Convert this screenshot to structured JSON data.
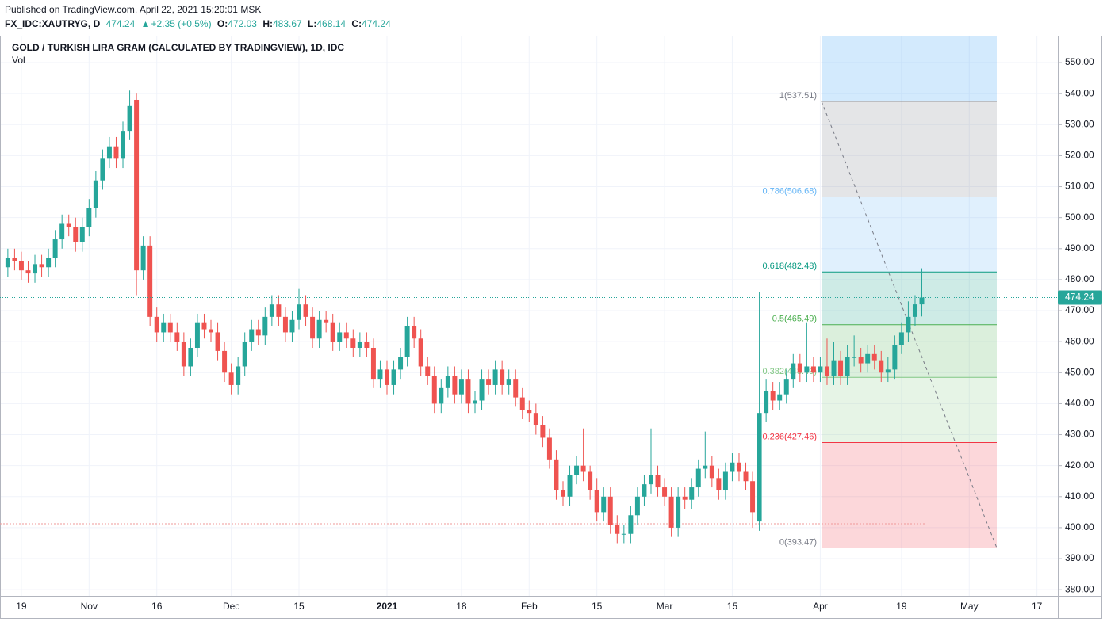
{
  "header": {
    "published": "Published on TradingView.com, April 22, 2021 15:20:01 MSK",
    "symbol": "FX_IDC:XAUTRYG, D",
    "last": "474.24",
    "arrow": "▲",
    "change": "+2.35 (+0.5%)",
    "o_label": "O:",
    "o": "472.03",
    "h_label": "H:",
    "h": "483.67",
    "l_label": "L:",
    "l": "468.14",
    "c_label": "C:",
    "c": "474.24"
  },
  "chart_data": {
    "type": "candlestick",
    "title": "GOLD / TURKISH LIRA GRAM (CALCULATED BY TRADINGVIEW), 1D, IDC",
    "subtitle": "Vol",
    "up_color": "#26a69a",
    "down_color": "#ef5350",
    "grid": true,
    "categories": [
      null,
      null,
      "19",
      null,
      null,
      null,
      null,
      null,
      null,
      null,
      null,
      null,
      "Nov",
      null,
      null,
      null,
      null,
      null,
      null,
      null,
      null,
      null,
      "16",
      null,
      null,
      null,
      null,
      null,
      null,
      null,
      null,
      null,
      null,
      "Dec",
      null,
      null,
      null,
      null,
      null,
      null,
      null,
      null,
      null,
      "15",
      null,
      null,
      null,
      null,
      null,
      null,
      null,
      null,
      null,
      null,
      null,
      null,
      "2021",
      null,
      null,
      null,
      null,
      null,
      null,
      null,
      null,
      null,
      null,
      "18",
      null,
      null,
      null,
      null,
      null,
      null,
      null,
      null,
      null,
      "Feb",
      null,
      null,
      null,
      null,
      null,
      null,
      null,
      null,
      null,
      "15",
      null,
      null,
      null,
      null,
      null,
      null,
      null,
      null,
      null,
      "Mar",
      null,
      null,
      null,
      null,
      null,
      null,
      null,
      null,
      null,
      "15",
      null,
      null,
      null,
      null,
      null,
      null,
      null,
      null,
      null,
      null,
      null,
      null,
      "Apr",
      null,
      null,
      null,
      null,
      null,
      null,
      null,
      null,
      null,
      null,
      null,
      "19",
      null,
      null,
      null,
      null,
      null,
      null,
      null,
      null,
      null,
      "May",
      null,
      null,
      null,
      null,
      null,
      null,
      null,
      null,
      null,
      "17",
      null,
      null
    ],
    "open": [
      484,
      487,
      486,
      483,
      482,
      485,
      484,
      487,
      493,
      498,
      497,
      492,
      497,
      503,
      512,
      519,
      523,
      519,
      528,
      538,
      483,
      491,
      468,
      463,
      466,
      463,
      460,
      452,
      458,
      466,
      464,
      463,
      457,
      450,
      446,
      452,
      460,
      464,
      462,
      468,
      472,
      468,
      463,
      467,
      472,
      468,
      461,
      467,
      466,
      460,
      463,
      461,
      458,
      460,
      458,
      448,
      451,
      446,
      451,
      455,
      465,
      461,
      452,
      449,
      440,
      445,
      449,
      443,
      448,
      440,
      441,
      448,
      446,
      451,
      446,
      448,
      442,
      438,
      437,
      433,
      429,
      422,
      412,
      410,
      417,
      420,
      418,
      412,
      405,
      410,
      401,
      398,
      398,
      404,
      410,
      414,
      417,
      413,
      410,
      400,
      410,
      409,
      413,
      419,
      420,
      416,
      412,
      418,
      421,
      418,
      415,
      402,
      437,
      444,
      441,
      443,
      448,
      453,
      450,
      452,
      450,
      452,
      449,
      454,
      449,
      455,
      455,
      453,
      456,
      454,
      450,
      451,
      459,
      463,
      468,
      472.03,
      null,
      null,
      null,
      null,
      null,
      null,
      null,
      null,
      null,
      null,
      null,
      null,
      null,
      null,
      null,
      null,
      null,
      null,
      null
    ],
    "high": [
      490,
      490,
      489,
      486,
      488,
      488,
      490,
      496,
      501,
      501,
      500,
      500,
      506,
      515,
      522,
      526,
      526,
      531,
      541,
      540,
      494,
      494,
      471,
      469,
      469,
      466,
      463,
      461,
      469,
      469,
      467,
      466,
      460,
      453,
      455,
      463,
      467,
      467,
      471,
      475,
      475,
      471,
      470,
      477,
      475,
      471,
      470,
      470,
      469,
      466,
      466,
      464,
      463,
      463,
      461,
      454,
      454,
      454,
      458,
      468,
      468,
      464,
      455,
      452,
      448,
      452,
      452,
      451,
      451,
      444,
      451,
      451,
      454,
      454,
      451,
      451,
      445,
      441,
      440,
      436,
      432,
      425,
      415,
      420,
      423,
      432,
      420,
      416,
      413,
      413,
      404,
      401,
      407,
      413,
      417,
      432,
      420,
      416,
      413,
      413,
      413,
      416,
      422,
      431,
      423,
      419,
      421,
      424,
      424,
      421,
      418,
      476,
      448,
      447,
      447,
      451,
      456,
      456,
      466,
      455,
      455,
      461,
      460,
      457,
      459,
      462,
      458,
      459,
      459,
      457,
      455,
      462,
      466,
      473,
      475,
      483.67,
      null,
      null,
      null,
      null,
      null,
      null,
      null,
      null,
      null,
      null,
      null,
      null,
      null,
      null,
      null,
      null,
      null,
      null,
      null
    ],
    "low": [
      481,
      483,
      480,
      479,
      479,
      481,
      481,
      484,
      490,
      494,
      489,
      489,
      494,
      500,
      509,
      516,
      516,
      516,
      525,
      475,
      480,
      465,
      460,
      460,
      460,
      457,
      449,
      449,
      455,
      461,
      460,
      454,
      447,
      443,
      443,
      449,
      457,
      459,
      459,
      465,
      465,
      460,
      460,
      464,
      465,
      458,
      458,
      463,
      457,
      457,
      458,
      455,
      455,
      455,
      445,
      445,
      443,
      443,
      448,
      452,
      458,
      449,
      446,
      437,
      437,
      442,
      440,
      440,
      437,
      437,
      438,
      443,
      443,
      443,
      443,
      439,
      435,
      434,
      430,
      426,
      419,
      409,
      407,
      407,
      414,
      415,
      409,
      402,
      402,
      398,
      395,
      395,
      395,
      401,
      407,
      411,
      410,
      407,
      397,
      397,
      406,
      406,
      410,
      416,
      413,
      409,
      409,
      415,
      415,
      412,
      400,
      399,
      434,
      438,
      438,
      440,
      445,
      447,
      447,
      447,
      447,
      446,
      446,
      446,
      446,
      452,
      450,
      450,
      451,
      447,
      447,
      448,
      456,
      460,
      465,
      468.14,
      null,
      null,
      null,
      null,
      null,
      null,
      null,
      null,
      null,
      null,
      null,
      null,
      null,
      null,
      null,
      null,
      null,
      null,
      null
    ],
    "close": [
      487,
      486,
      483,
      482,
      485,
      484,
      487,
      493,
      498,
      497,
      492,
      497,
      503,
      512,
      519,
      523,
      519,
      528,
      536,
      483,
      491,
      468,
      463,
      466,
      463,
      460,
      452,
      458,
      466,
      464,
      463,
      457,
      450,
      446,
      452,
      460,
      464,
      462,
      468,
      472,
      468,
      463,
      467,
      472,
      468,
      461,
      467,
      466,
      460,
      463,
      461,
      458,
      460,
      458,
      448,
      451,
      446,
      451,
      455,
      465,
      461,
      452,
      449,
      440,
      445,
      449,
      443,
      448,
      440,
      441,
      448,
      446,
      451,
      446,
      448,
      442,
      438,
      437,
      433,
      429,
      422,
      412,
      410,
      417,
      420,
      418,
      412,
      405,
      410,
      401,
      398,
      398,
      404,
      410,
      414,
      417,
      413,
      410,
      400,
      410,
      409,
      413,
      419,
      420,
      416,
      412,
      418,
      421,
      418,
      415,
      405,
      437,
      444,
      441,
      443,
      448,
      453,
      450,
      452,
      450,
      452,
      449,
      454,
      449,
      455,
      455,
      453,
      456,
      454,
      450,
      451,
      459,
      463,
      468,
      472.03,
      474.24,
      null,
      null,
      null,
      null,
      null,
      null,
      null,
      null,
      null,
      null,
      null,
      null,
      null,
      null,
      null,
      null,
      null,
      null,
      null
    ],
    "last_price_label": "474.24",
    "ylim": [
      378,
      558.7
    ],
    "yticks": [
      {
        "value": 380,
        "label": "380.00"
      },
      {
        "value": 390,
        "label": "390.00"
      },
      {
        "value": 400,
        "label": "400.00"
      },
      {
        "value": 410,
        "label": "410.00"
      },
      {
        "value": 420,
        "label": "420.00"
      },
      {
        "value": 430,
        "label": "430.00"
      },
      {
        "value": 440,
        "label": "440.00"
      },
      {
        "value": 450,
        "label": "450.00"
      },
      {
        "value": 460,
        "label": "460.00"
      },
      {
        "value": 470,
        "label": "470.00"
      },
      {
        "value": 480,
        "label": "480.00"
      },
      {
        "value": 490,
        "label": "490.00"
      },
      {
        "value": 500,
        "label": "500.00"
      },
      {
        "value": 510,
        "label": "510.00"
      },
      {
        "value": 520,
        "label": "520.00"
      },
      {
        "value": 530,
        "label": "530.00"
      },
      {
        "value": 540,
        "label": "540.00"
      },
      {
        "value": 550,
        "label": "550.00"
      }
    ],
    "fib_levels": [
      {
        "value": 537.51,
        "label": "1(537.51)",
        "color": "#787b86"
      },
      {
        "value": 506.68,
        "label": "0.786(506.68)",
        "color": "#64b5f6"
      },
      {
        "value": 482.48,
        "label": "0.618(482.48)",
        "color": "#089981"
      },
      {
        "value": 465.49,
        "label": "0.5(465.49)",
        "color": "#4caf50"
      },
      {
        "value": 448.49,
        "label": "0.382(448.49)",
        "color": "#81c784"
      },
      {
        "value": 427.46,
        "label": "0.236(427.46)",
        "color": "#f23645"
      },
      {
        "value": 393.47,
        "label": "0(393.47)",
        "color": "#787b86"
      }
    ]
  }
}
